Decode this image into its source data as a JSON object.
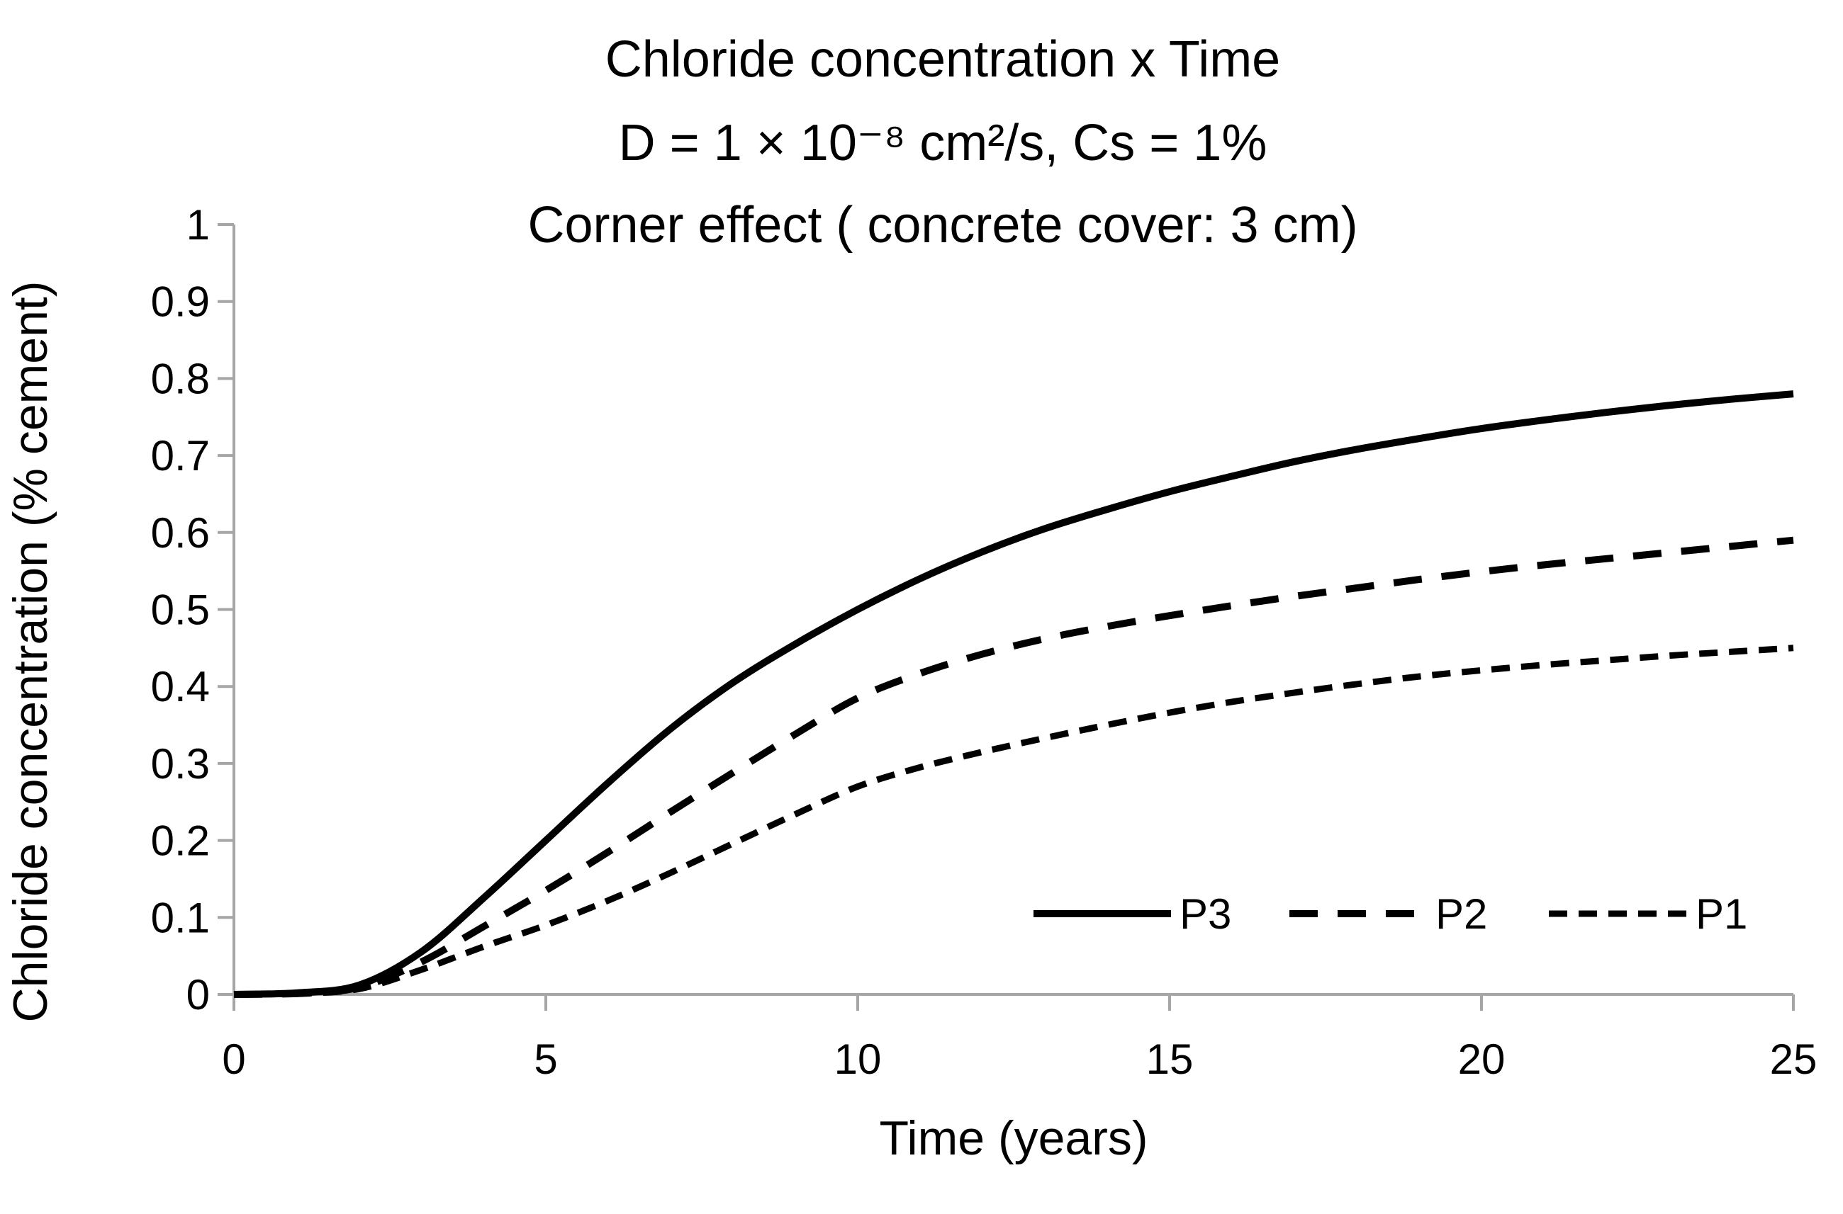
{
  "chart_data": {
    "type": "line",
    "title_lines": [
      "Chloride concentration x Time",
      "D = 1 × 10⁻⁸  cm²/s, Cs = 1%",
      "Corner effect ( concrete cover: 3 cm)"
    ],
    "xlabel": "Time (years)",
    "ylabel": "Chloride concentration (% cement)",
    "xlim": [
      0,
      25
    ],
    "ylim": [
      0,
      1
    ],
    "x_ticks": [
      0,
      5,
      10,
      15,
      20,
      25
    ],
    "y_ticks": [
      "0",
      "0.1",
      "0.2",
      "0.3",
      "0.4",
      "0.5",
      "0.6",
      "0.7",
      "0.8",
      "0.9",
      "1"
    ],
    "grid": false,
    "legend": {
      "position": "inside-right-bottom",
      "entries": [
        "P3",
        "P2",
        "P1"
      ]
    },
    "x": [
      0,
      1,
      2,
      3,
      4,
      5,
      6,
      7,
      8,
      9,
      10,
      11,
      12,
      13,
      14,
      15,
      16,
      17,
      18,
      19,
      20,
      21,
      22,
      23,
      24,
      25
    ],
    "series": [
      {
        "name": "P3",
        "line_style": "solid",
        "values": [
          0,
          0.002,
          0.012,
          0.055,
          0.125,
          0.2,
          0.275,
          0.345,
          0.405,
          0.455,
          0.5,
          0.54,
          0.575,
          0.605,
          0.63,
          0.653,
          0.673,
          0.692,
          0.708,
          0.722,
          0.735,
          0.746,
          0.756,
          0.765,
          0.773,
          0.78
        ]
      },
      {
        "name": "P2",
        "line_style": "dashed",
        "values": [
          0,
          0.001,
          0.009,
          0.042,
          0.088,
          0.135,
          0.185,
          0.237,
          0.288,
          0.338,
          0.385,
          0.417,
          0.442,
          0.462,
          0.478,
          0.492,
          0.505,
          0.517,
          0.528,
          0.539,
          0.549,
          0.558,
          0.566,
          0.574,
          0.582,
          0.59
        ]
      },
      {
        "name": "P1",
        "line_style": "short-dashed",
        "values": [
          0,
          0.001,
          0.007,
          0.032,
          0.062,
          0.09,
          0.122,
          0.158,
          0.196,
          0.234,
          0.27,
          0.295,
          0.315,
          0.333,
          0.35,
          0.366,
          0.38,
          0.392,
          0.403,
          0.413,
          0.421,
          0.428,
          0.434,
          0.44,
          0.445,
          0.45
        ]
      }
    ],
    "colors": {
      "line": "#000000",
      "axis": "#a6a6a6",
      "text": "#000000",
      "background": "#ffffff"
    }
  }
}
